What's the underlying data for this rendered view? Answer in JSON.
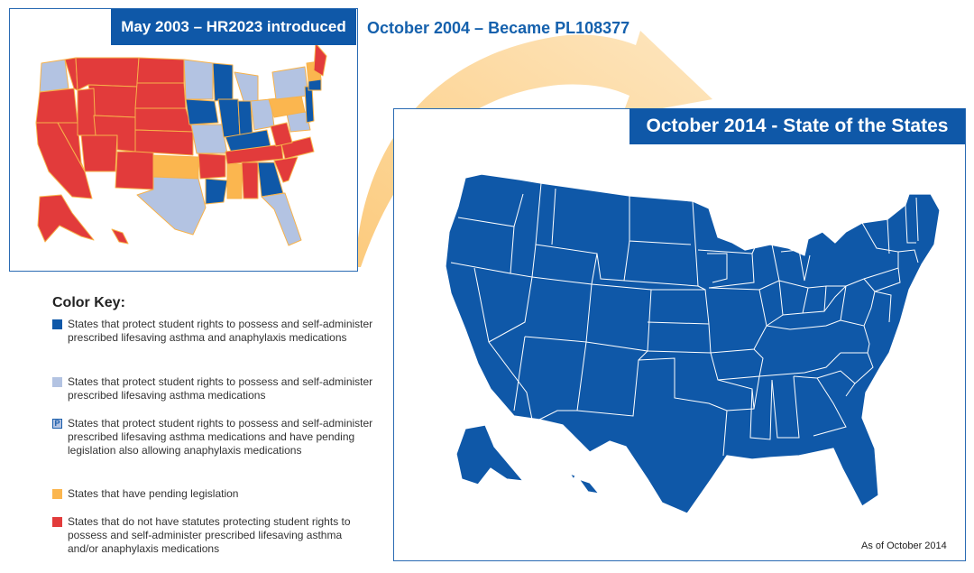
{
  "titles": {
    "map_2003": "May 2003 – HR2023 introduced",
    "arrow": "October 2004 – Became PL108377",
    "map_2014": "October 2014 - State of the States"
  },
  "footnote": "As of October 2014",
  "colors": {
    "dark_blue": "#0f58a8",
    "light_blue": "#b3c3e2",
    "orange": "#fbb64f",
    "red": "#e23b3b",
    "state_border": "#f7b24a",
    "arrow": "#fcd49a"
  },
  "color_key": {
    "heading": "Color Key:",
    "items": [
      {
        "color": "#0f58a8",
        "icon": "",
        "text": "States that protect student rights to possess and self-administer prescribed lifesaving asthma and anaphylaxis medications"
      },
      {
        "color": "#b3c3e2",
        "icon": "",
        "text": "States that protect student rights to possess and self-administer prescribed lifesaving asthma medications"
      },
      {
        "color": "#b3c3e2",
        "icon": "P",
        "text": "States that protect student rights to possess and self-administer prescribed lifesaving asthma medications and have pending legislation also allowing anaphylaxis medications"
      },
      {
        "color": "#fbb64f",
        "icon": "",
        "text": "States that have pending legislation"
      },
      {
        "color": "#e23b3b",
        "icon": "",
        "text": "States that do not have statutes protecting student rights to possess and self-administer prescribed lifesaving asthma and/or anaphylaxis medications"
      }
    ]
  }
}
